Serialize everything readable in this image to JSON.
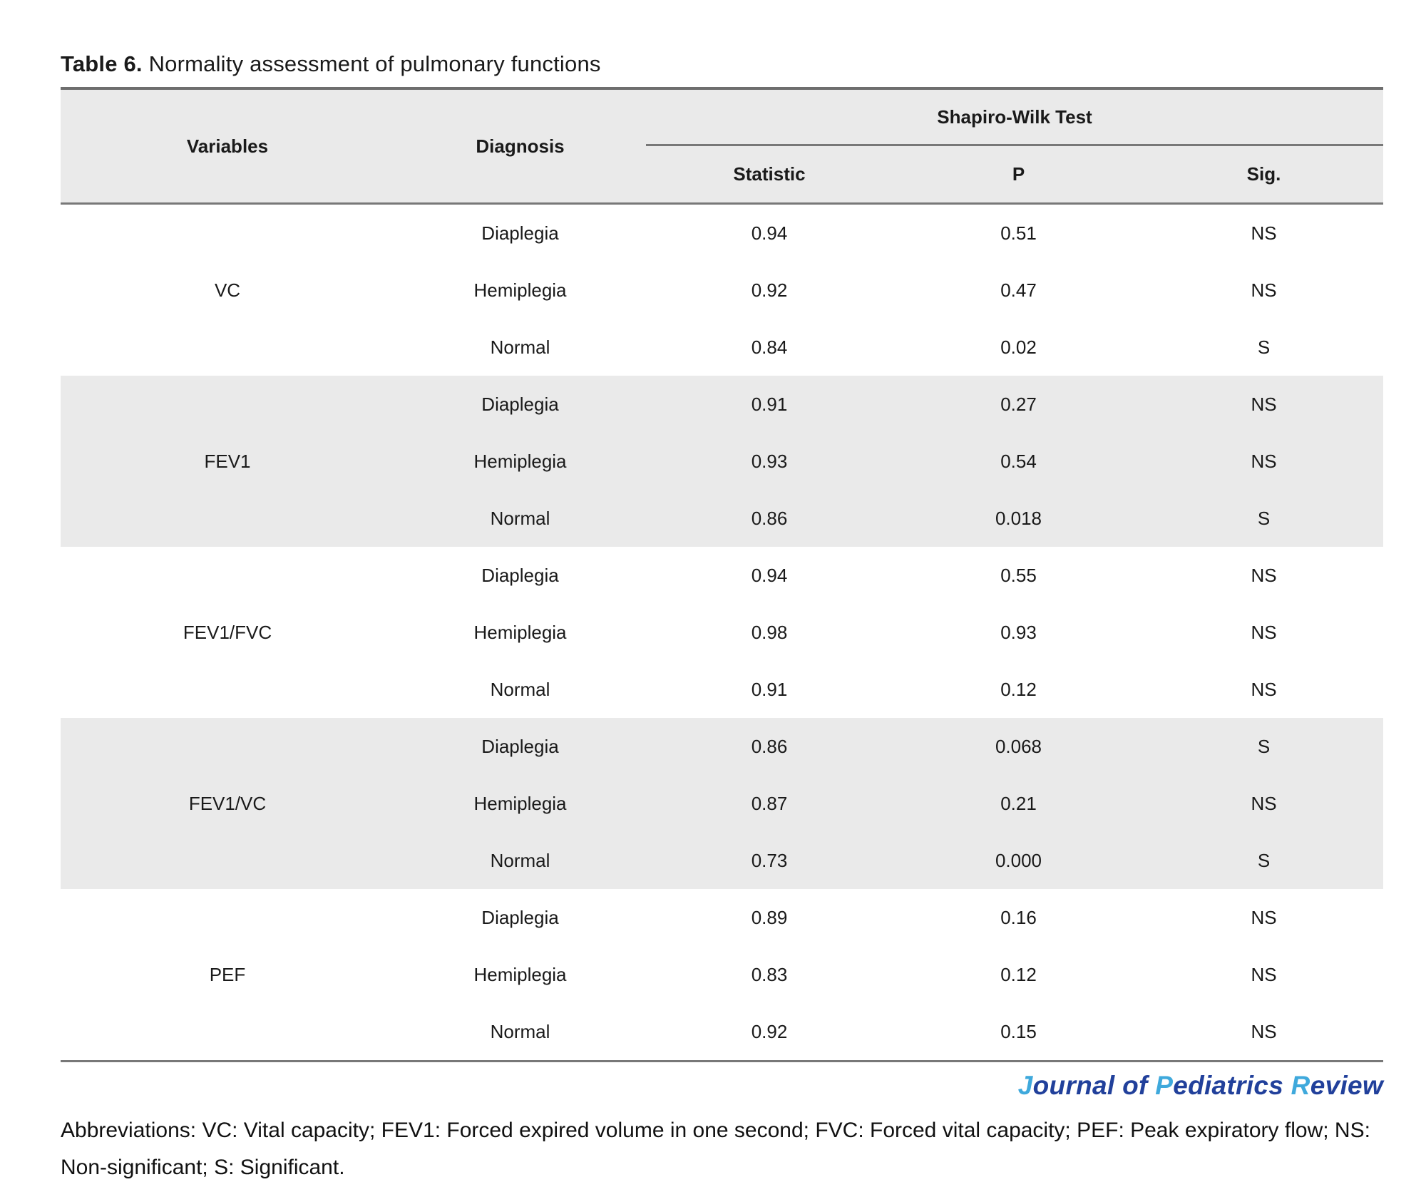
{
  "caption": {
    "label": "Table 6.",
    "text": "Normality assessment of pulmonary functions"
  },
  "table": {
    "header": {
      "variables": "Variables",
      "diagnosis": "Diagnosis",
      "group_header": "Shapiro-Wilk Test",
      "sub_columns": [
        "Statistic",
        "P",
        "Sig."
      ]
    },
    "groups": [
      {
        "variable": "VC",
        "rows": [
          {
            "diagnosis": "Diaplegia",
            "statistic": "0.94",
            "p": "0.51",
            "sig": "NS"
          },
          {
            "diagnosis": "Hemiplegia",
            "statistic": "0.92",
            "p": "0.47",
            "sig": "NS"
          },
          {
            "diagnosis": "Normal",
            "statistic": "0.84",
            "p": "0.02",
            "sig": "S"
          }
        ]
      },
      {
        "variable": "FEV1",
        "rows": [
          {
            "diagnosis": "Diaplegia",
            "statistic": "0.91",
            "p": "0.27",
            "sig": "NS"
          },
          {
            "diagnosis": "Hemiplegia",
            "statistic": "0.93",
            "p": "0.54",
            "sig": "NS"
          },
          {
            "diagnosis": "Normal",
            "statistic": "0.86",
            "p": "0.018",
            "sig": "S"
          }
        ]
      },
      {
        "variable": "FEV1/FVC",
        "rows": [
          {
            "diagnosis": "Diaplegia",
            "statistic": "0.94",
            "p": "0.55",
            "sig": "NS"
          },
          {
            "diagnosis": "Hemiplegia",
            "statistic": "0.98",
            "p": "0.93",
            "sig": "NS"
          },
          {
            "diagnosis": "Normal",
            "statistic": "0.91",
            "p": "0.12",
            "sig": "NS"
          }
        ]
      },
      {
        "variable": "FEV1/VC",
        "rows": [
          {
            "diagnosis": "Diaplegia",
            "statistic": "0.86",
            "p": "0.068",
            "sig": "S"
          },
          {
            "diagnosis": "Hemiplegia",
            "statistic": "0.87",
            "p": "0.21",
            "sig": "NS"
          },
          {
            "diagnosis": "Normal",
            "statistic": "0.73",
            "p": "0.000",
            "sig": "S"
          }
        ]
      },
      {
        "variable": "PEF",
        "rows": [
          {
            "diagnosis": "Diaplegia",
            "statistic": "0.89",
            "p": "0.16",
            "sig": "NS"
          },
          {
            "diagnosis": "Hemiplegia",
            "statistic": "0.83",
            "p": "0.12",
            "sig": "NS"
          },
          {
            "diagnosis": "Normal",
            "statistic": "0.92",
            "p": "0.15",
            "sig": "NS"
          }
        ]
      }
    ]
  },
  "journal": {
    "parts": [
      {
        "t": "J"
      },
      {
        "t": "ournal of "
      },
      {
        "t": "P"
      },
      {
        "t": "ediatrics "
      },
      {
        "t": "R"
      },
      {
        "t": "eview"
      }
    ]
  },
  "footnote": "Abbreviations: VC: Vital capacity; FEV1: Forced expired volume in one second; FVC: Forced vital capacity; PEF: Peak expiratory flow; NS: Non-significant; S: Significant.",
  "colors": {
    "header_band": "#eaeaea",
    "stripe_band": "#eaeaea",
    "border": "#787878",
    "journal_navy": "#21409b",
    "journal_light_blue": "#3fa9dc"
  }
}
